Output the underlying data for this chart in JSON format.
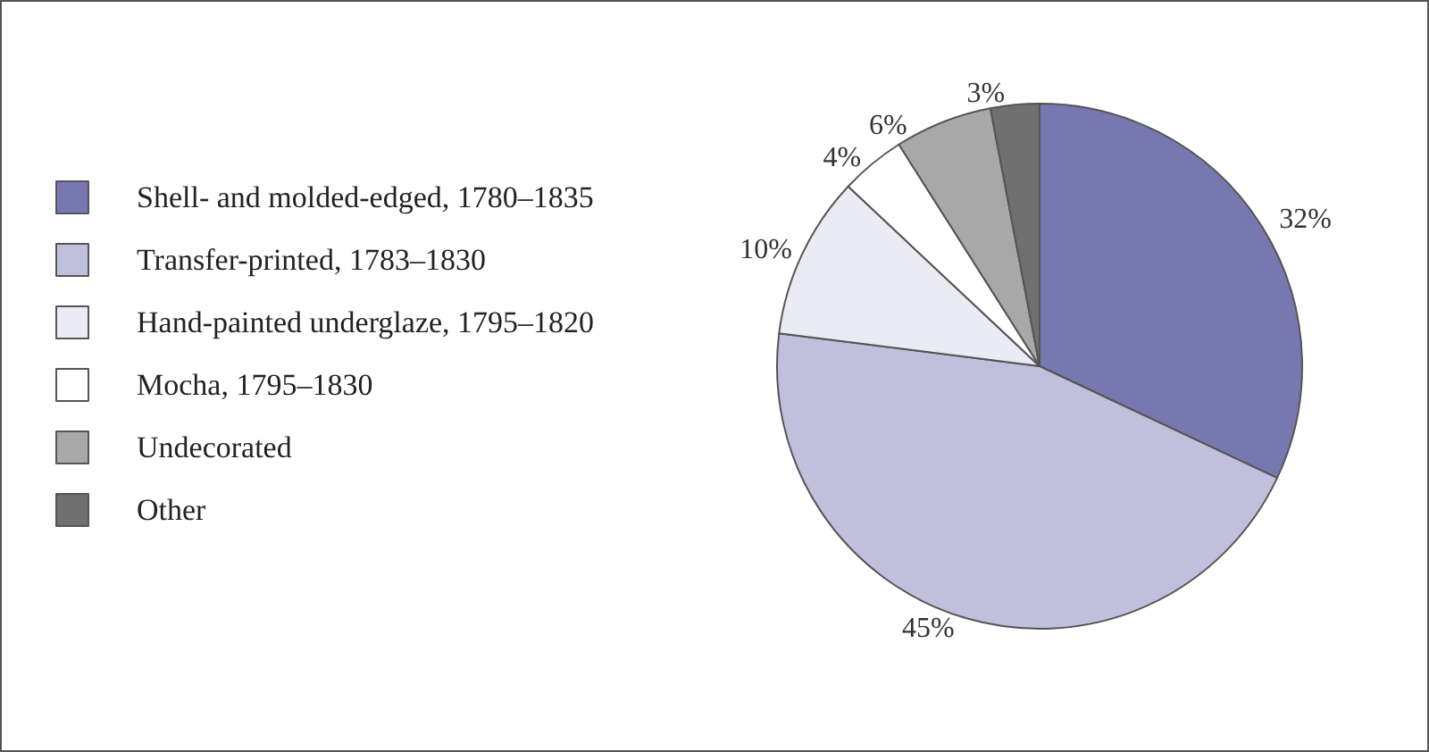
{
  "chart_data": {
    "type": "pie",
    "categories": [
      "Shell- and molded-edged, 1780–1835",
      "Transfer-printed, 1783–1830",
      "Hand-painted underglaze, 1795–1820",
      "Mocha, 1795–1830",
      "Undecorated",
      "Other"
    ],
    "values": [
      32,
      45,
      10,
      4,
      6,
      3
    ],
    "value_labels": [
      "32%",
      "45%",
      "10%",
      "4%",
      "6%",
      "3%"
    ],
    "colors": [
      "#7878b0",
      "#c0c0dc",
      "#ebebf5",
      "#ffffff",
      "#a8a8a8",
      "#707070"
    ],
    "legend": "left"
  }
}
